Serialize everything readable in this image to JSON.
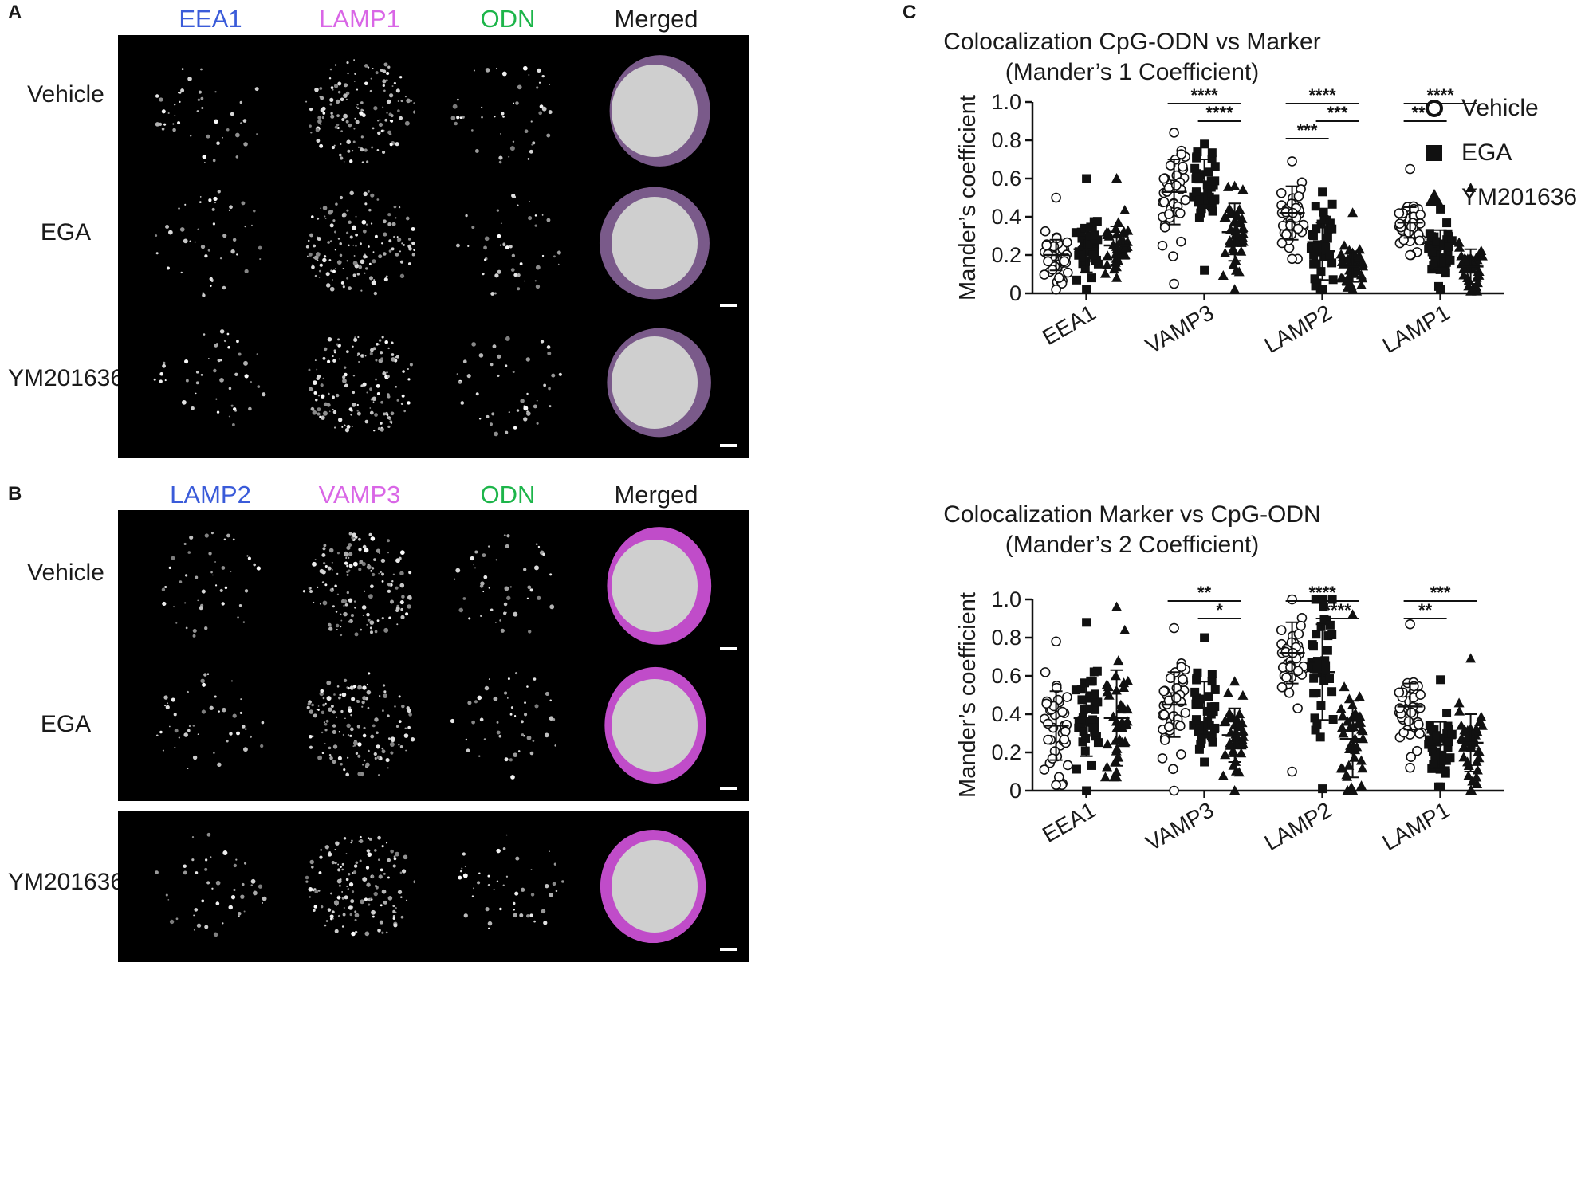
{
  "panels": {
    "A": {
      "letter": "A",
      "columns": [
        {
          "label": "EEA1",
          "color": "#3a5bd9"
        },
        {
          "label": "LAMP1",
          "color": "#d966e6"
        },
        {
          "label": "ODN",
          "color": "#1db54a"
        },
        {
          "label": "Merged",
          "color": "#1a1a1a"
        }
      ],
      "rows": [
        "Vehicle",
        "EGA",
        "YM201636"
      ]
    },
    "B": {
      "letter": "B",
      "columns": [
        {
          "label": "LAMP2",
          "color": "#3a5bd9"
        },
        {
          "label": "VAMP3",
          "color": "#d966e6"
        },
        {
          "label": "ODN",
          "color": "#1db54a"
        },
        {
          "label": "Merged",
          "color": "#1a1a1a"
        }
      ],
      "rows": [
        "Vehicle",
        "EGA",
        "YM201636"
      ]
    },
    "C": {
      "letter": "C"
    }
  },
  "legend": [
    {
      "label": "Vehicle",
      "marker": "open-circle"
    },
    {
      "label": "EGA",
      "marker": "filled-square"
    },
    {
      "label": "YM201636",
      "marker": "filled-triangle"
    }
  ],
  "chart_data": [
    {
      "type": "scatter",
      "title": "Colocalization CpG-ODN  vs Marker",
      "subtitle": "(Mander’s  1 Coefficient)",
      "ylabel": "Mander’s coefficient",
      "xlabel": "",
      "ylim": [
        0,
        1.0
      ],
      "yticks": [
        "0",
        "0.2",
        "0.4",
        "0.6",
        "0.8",
        "1.0"
      ],
      "categories": [
        "EEA1",
        "VAMP3",
        "LAMP2",
        "LAMP1"
      ],
      "series": [
        {
          "name": "Vehicle",
          "marker": "open-circle",
          "mean": [
            0.2,
            0.53,
            0.42,
            0.37
          ],
          "sd": [
            0.08,
            0.17,
            0.14,
            0.08
          ],
          "max": [
            0.5,
            0.84,
            0.69,
            0.65
          ],
          "min": [
            0.02,
            0.05,
            0.18,
            0.2
          ]
        },
        {
          "name": "EGA",
          "marker": "filled-square",
          "mean": [
            0.23,
            0.58,
            0.22,
            0.23
          ],
          "sd": [
            0.12,
            0.12,
            0.15,
            0.1
          ],
          "max": [
            0.6,
            0.78,
            0.53,
            0.44
          ],
          "min": [
            0.02,
            0.12,
            0.02,
            0.02
          ]
        },
        {
          "name": "YM201636",
          "marker": "filled-triangle",
          "mean": [
            0.25,
            0.32,
            0.14,
            0.14
          ],
          "sd": [
            0.1,
            0.15,
            0.08,
            0.09
          ],
          "max": [
            0.6,
            0.56,
            0.42,
            0.55
          ],
          "min": [
            0.08,
            0.02,
            0.02,
            0.01
          ]
        }
      ],
      "significance": [
        {
          "category": "VAMP3",
          "from": "Vehicle",
          "to": "YM201636",
          "label": "****"
        },
        {
          "category": "VAMP3",
          "from": "EGA",
          "to": "YM201636",
          "label": "****"
        },
        {
          "category": "LAMP2",
          "from": "Vehicle",
          "to": "YM201636",
          "label": "****"
        },
        {
          "category": "LAMP2",
          "from": "EGA",
          "to": "YM201636",
          "label": "***"
        },
        {
          "category": "LAMP2",
          "from": "Vehicle",
          "to": "EGA",
          "label": "***"
        },
        {
          "category": "LAMP1",
          "from": "Vehicle",
          "to": "YM201636",
          "label": "****"
        },
        {
          "category": "LAMP1",
          "from": "Vehicle",
          "to": "EGA",
          "label": "****"
        }
      ]
    },
    {
      "type": "scatter",
      "title": "Colocalization Marker vs CpG-ODN",
      "subtitle": "(Mander’s 2 Coefficient)",
      "ylabel": "Mander’s coefficient",
      "xlabel": "",
      "ylim": [
        0,
        1.0
      ],
      "yticks": [
        "0",
        "0.2",
        "0.4",
        "0.6",
        "0.8",
        "1.0"
      ],
      "categories": [
        "EEA1",
        "VAMP3",
        "LAMP2",
        "LAMP1"
      ],
      "series": [
        {
          "name": "Vehicle",
          "marker": "open-circle",
          "mean": [
            0.34,
            0.45,
            0.72,
            0.44
          ],
          "sd": [
            0.18,
            0.17,
            0.16,
            0.12
          ],
          "max": [
            0.78,
            0.85,
            1.0,
            0.87
          ],
          "min": [
            0.03,
            0.0,
            0.1,
            0.12
          ]
        },
        {
          "name": "EGA",
          "marker": "filled-square",
          "mean": [
            0.38,
            0.43,
            0.62,
            0.24
          ],
          "sd": [
            0.2,
            0.14,
            0.25,
            0.12
          ],
          "max": [
            0.88,
            0.8,
            1.0,
            0.58
          ],
          "min": [
            0.0,
            0.15,
            0.01,
            0.02
          ]
        },
        {
          "name": "YM201636",
          "marker": "filled-triangle",
          "mean": [
            0.38,
            0.29,
            0.27,
            0.25
          ],
          "sd": [
            0.25,
            0.14,
            0.2,
            0.15
          ],
          "max": [
            0.96,
            0.57,
            0.92,
            0.69
          ],
          "min": [
            0.07,
            0.0,
            0.0,
            0.0
          ]
        }
      ],
      "significance": [
        {
          "category": "VAMP3",
          "from": "Vehicle",
          "to": "YM201636",
          "label": "**"
        },
        {
          "category": "VAMP3",
          "from": "EGA",
          "to": "YM201636",
          "label": "*"
        },
        {
          "category": "LAMP2",
          "from": "Vehicle",
          "to": "YM201636",
          "label": "****"
        },
        {
          "category": "LAMP2",
          "from": "EGA",
          "to": "YM201636",
          "label": "****"
        },
        {
          "category": "LAMP1",
          "from": "Vehicle",
          "to": "YM201636",
          "label": "***"
        },
        {
          "category": "LAMP1",
          "from": "Vehicle",
          "to": "EGA",
          "label": "**"
        }
      ]
    }
  ]
}
